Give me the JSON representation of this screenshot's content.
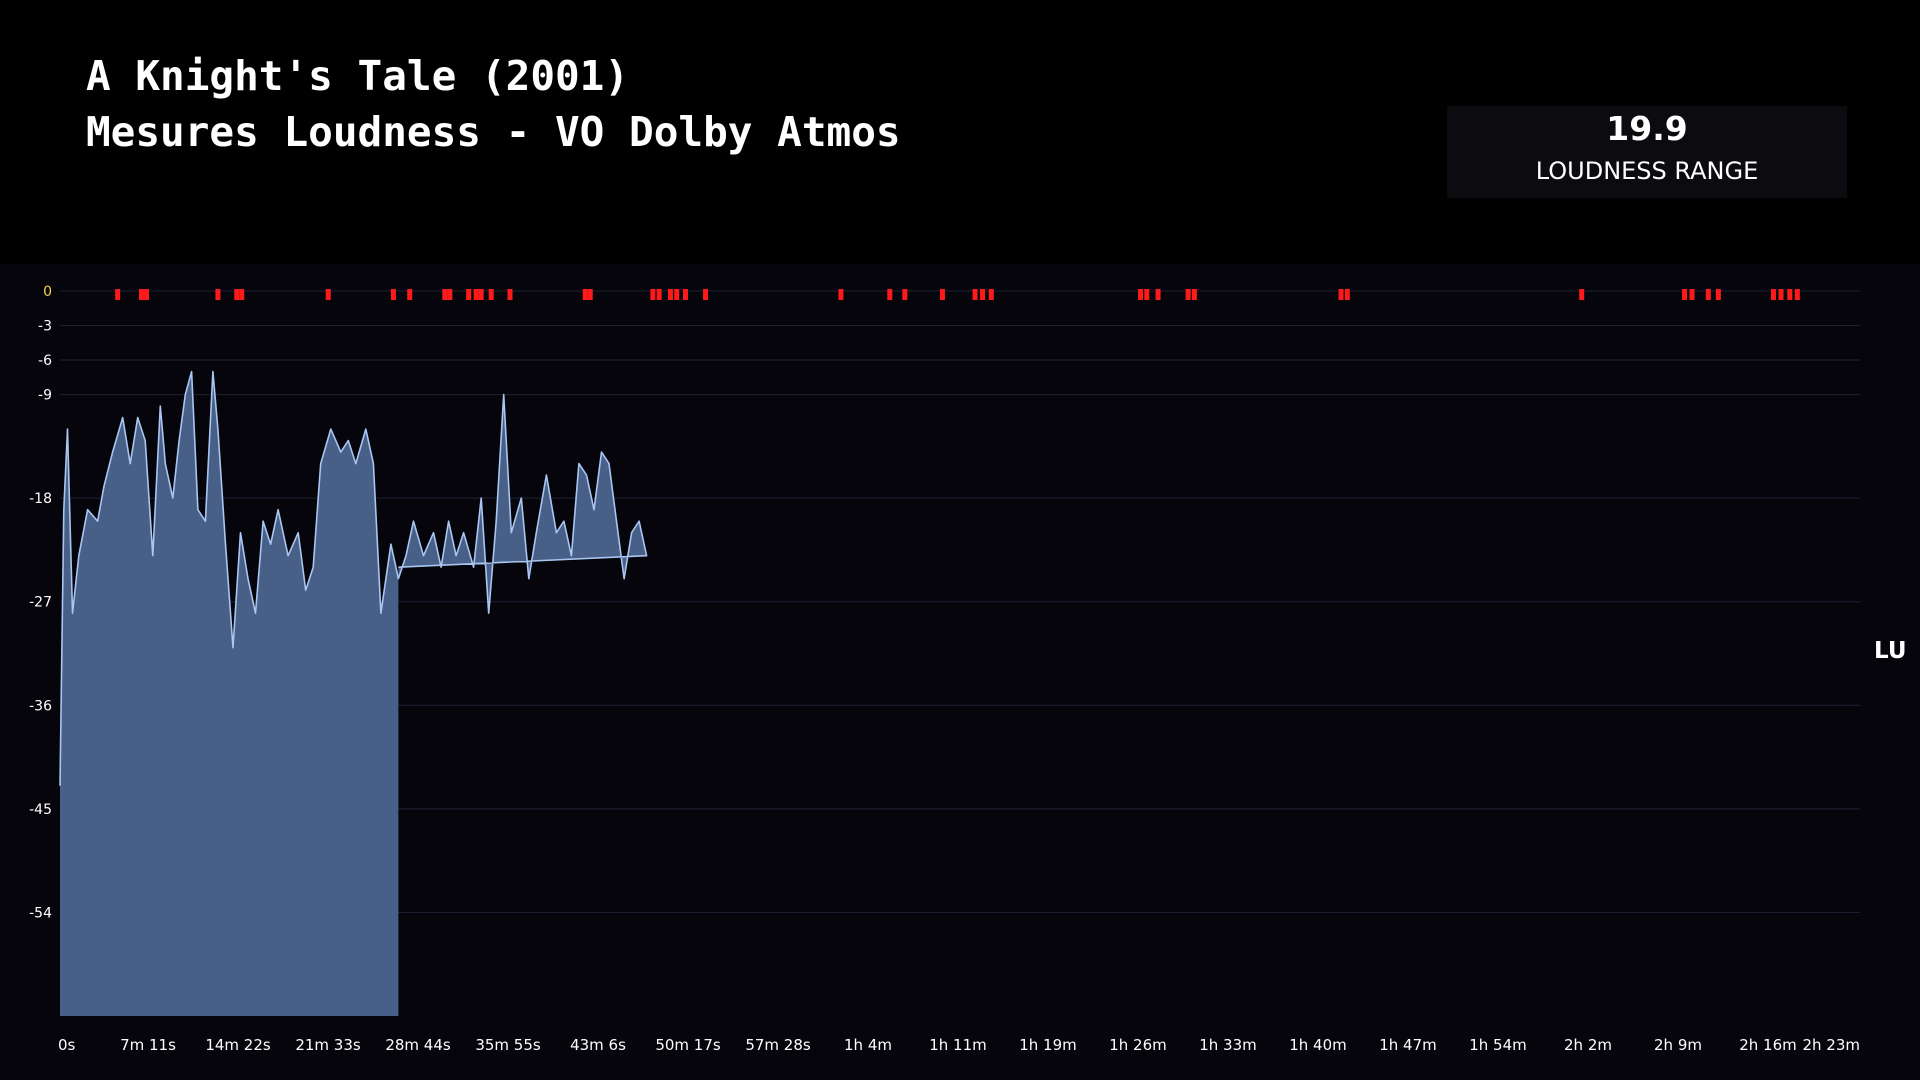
{
  "title": {
    "line1": "A Knight's Tale (2001)",
    "line2": "Mesures Loudness - VO Dolby Atmos"
  },
  "stat": {
    "value": "19.9",
    "label": "LOUDNESS RANGE"
  },
  "colors": {
    "background": "#000000",
    "plot_background": "#05050b",
    "area_fill": "#485f88",
    "line": "#a9c6f0",
    "marker": "#ff1a1a",
    "zero_tick": "#f2d34a",
    "grid": "#1c2236"
  },
  "chart_data": {
    "type": "area",
    "ylabel": "LU",
    "ylim": [
      -63,
      0
    ],
    "y_ticks": [
      0,
      -3,
      -6,
      -9,
      -18,
      -27,
      -36,
      -45,
      -54
    ],
    "duration_minutes": 143.6,
    "x_tick_labels": [
      "0s",
      "7m 11s",
      "14m 22s",
      "21m 33s",
      "28m 44s",
      "35m 55s",
      "43m 6s",
      "50m 17s",
      "57m 28s",
      "1h 4m",
      "1h 11m",
      "1h 19m",
      "1h 26m",
      "1h 33m",
      "1h 40m",
      "1h 47m",
      "1h 54m",
      "2h 2m",
      "2h 9m",
      "2h 16m",
      "2h 23m"
    ],
    "series": [
      {
        "values": [
          [
            0,
            -43
          ],
          [
            0.3,
            -19
          ],
          [
            0.6,
            -12
          ],
          [
            1.0,
            -28
          ],
          [
            1.5,
            -23
          ],
          [
            2.2,
            -19
          ],
          [
            3.0,
            -20
          ],
          [
            3.5,
            -17
          ],
          [
            4.2,
            -14
          ],
          [
            5.0,
            -11
          ],
          [
            5.6,
            -15
          ],
          [
            6.2,
            -11
          ],
          [
            6.8,
            -13
          ],
          [
            7.4,
            -23
          ],
          [
            8.0,
            -10
          ],
          [
            8.4,
            -15
          ],
          [
            9.0,
            -18
          ],
          [
            9.5,
            -13
          ],
          [
            10.0,
            -9
          ],
          [
            10.5,
            -7
          ],
          [
            11.0,
            -19
          ],
          [
            11.6,
            -20
          ],
          [
            12.2,
            -7
          ],
          [
            12.6,
            -12
          ],
          [
            13.2,
            -22
          ],
          [
            13.8,
            -31
          ],
          [
            14.4,
            -21
          ],
          [
            15.0,
            -25
          ],
          [
            15.6,
            -28
          ],
          [
            16.2,
            -20
          ],
          [
            16.8,
            -22
          ],
          [
            17.4,
            -19
          ],
          [
            18.2,
            -23
          ],
          [
            19.0,
            -21
          ],
          [
            19.6,
            -26
          ],
          [
            20.2,
            -24
          ],
          [
            20.8,
            -15
          ],
          [
            21.6,
            -12
          ],
          [
            22.4,
            -14
          ],
          [
            23.0,
            -13
          ],
          [
            23.6,
            -15
          ],
          [
            24.4,
            -12
          ],
          [
            25.0,
            -15
          ],
          [
            25.6,
            -28
          ],
          [
            26.4,
            -22
          ],
          [
            27.0,
            -25
          ],
          [
            27.6,
            -23
          ],
          [
            28.2,
            -20
          ],
          [
            29.0,
            -23
          ],
          [
            29.8,
            -21
          ],
          [
            30.4,
            -24
          ],
          [
            31.0,
            -20
          ],
          [
            31.6,
            -23
          ],
          [
            32.2,
            -21
          ],
          [
            33.0,
            -24
          ],
          [
            33.6,
            -18
          ],
          [
            34.2,
            -28
          ],
          [
            34.8,
            -20
          ],
          [
            35.4,
            -9
          ],
          [
            36.0,
            -21
          ],
          [
            36.8,
            -18
          ],
          [
            37.4,
            -25
          ],
          [
            38.0,
            -21
          ],
          [
            38.8,
            -16
          ],
          [
            39.6,
            -21
          ],
          [
            40.2,
            -20
          ],
          [
            40.8,
            -23
          ],
          [
            41.4,
            -15
          ],
          [
            42.0,
            -16
          ],
          [
            42.6,
            -19
          ],
          [
            43.2,
            -14
          ],
          [
            43.8,
            -15
          ],
          [
            44.4,
            -20
          ],
          [
            45.0,
            -25
          ],
          [
            45.6,
            -21
          ],
          [
            46.2,
            -20
          ],
          [
            46.8,
            -23
          ],
          [
            27.0,
            -24
          ]
        ]
      }
    ],
    "clip_markers_minutes": [
      4.6,
      6.5,
      6.9,
      12.6,
      14.1,
      14.5,
      21.4,
      26.6,
      27.9,
      30.7,
      31.1,
      32.6,
      33.2,
      33.6,
      34.4,
      35.9,
      41.9,
      42.3,
      47.3,
      47.8,
      48.7,
      49.2,
      49.9,
      51.5,
      62.3,
      66.2,
      67.4,
      70.4,
      73.0,
      73.6,
      74.3,
      86.2,
      86.7,
      87.6,
      90.0,
      90.5,
      102.2,
      102.7,
      121.4,
      129.6,
      130.2,
      131.5,
      132.3,
      136.7,
      137.3,
      138.0,
      138.6
    ]
  }
}
